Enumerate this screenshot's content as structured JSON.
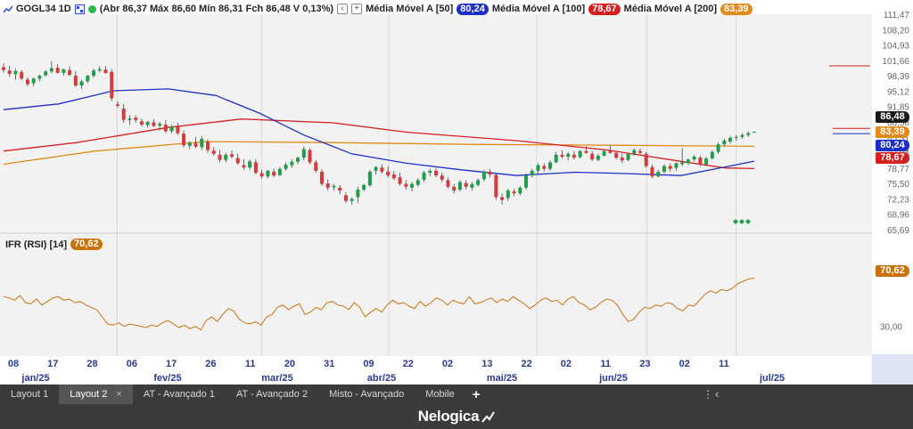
{
  "header": {
    "symbol": "GOGL34 1D",
    "ohlc": "(Abr 86,37 Máx 86,60 Mín 86,31 Fch 86,48 V 0,13%)",
    "ma50_label": "Média Móvel A [50]",
    "ma50_value": "80,24",
    "ma100_label": "Média Móvel A [100]",
    "ma100_value": "78,67",
    "ma200_label": "Média Móvel A [200]",
    "ma200_value": "83,39",
    "colors": {
      "ma50": "#1f2fc6",
      "ma100": "#d62020",
      "ma200": "#e08a1a",
      "up": "#1e9e4a",
      "down": "#d63a3a",
      "rsi": "#c8720e"
    }
  },
  "rsi": {
    "label": "IFR (RSI) [14]",
    "value": "70,62",
    "axis_label": "30,00"
  },
  "price_tags": {
    "last": "86,48",
    "ma200": "83,39",
    "ma50": "80,24",
    "ma100": "78,67",
    "rsi": "70,62"
  },
  "y_axis_ticks": [
    "111,47",
    "108,20",
    "104,93",
    "101,66",
    "98,39",
    "95,12",
    "91,85",
    "88,58",
    "85,31",
    "82,04",
    "78,77",
    "75,50",
    "72,23",
    "68,96",
    "65,69"
  ],
  "x_axis": {
    "days": [
      "08",
      "17",
      "28",
      "06",
      "17",
      "26",
      "11",
      "20",
      "31",
      "09",
      "22",
      "02",
      "13",
      "22",
      "02",
      "11",
      "23",
      "02",
      "11"
    ],
    "months": [
      "jan/25",
      "fev/25",
      "mar/25",
      "abr/25",
      "mai/25",
      "jun/25",
      "jul/25"
    ]
  },
  "tabs": [
    {
      "label": "Layout 1",
      "active": false
    },
    {
      "label": "Layout 2",
      "active": true
    },
    {
      "label": "AT - Avançado 1",
      "active": false
    },
    {
      "label": "AT - Avançado 2",
      "active": false
    },
    {
      "label": "Misto - Avançado",
      "active": false
    },
    {
      "label": "Mobile",
      "active": false
    }
  ],
  "tab_close": "×",
  "tab_add": "+",
  "tab_menu": "⋮",
  "tab_scroll": "‹",
  "brand": "Nelogica",
  "chart_data": {
    "type": "candlestick",
    "ylim": [
      65.69,
      111.47
    ],
    "candles": [
      [
        100.2,
        101.0,
        99.0,
        99.6
      ],
      [
        99.5,
        100.5,
        98.2,
        98.8
      ],
      [
        98.7,
        99.9,
        97.6,
        99.4
      ],
      [
        99.2,
        99.6,
        97.4,
        97.8
      ],
      [
        97.6,
        98.1,
        96.2,
        96.6
      ],
      [
        96.8,
        98.0,
        96.2,
        97.8
      ],
      [
        97.8,
        98.6,
        97.2,
        98.4
      ],
      [
        98.5,
        99.6,
        98.2,
        99.3
      ],
      [
        99.3,
        101.5,
        98.9,
        100.0
      ],
      [
        100.1,
        100.9,
        98.9,
        99.0
      ],
      [
        99.0,
        99.9,
        98.4,
        99.8
      ],
      [
        99.6,
        100.4,
        98.3,
        98.6
      ],
      [
        98.4,
        99.4,
        96.0,
        96.3
      ],
      [
        96.3,
        97.6,
        95.6,
        97.2
      ],
      [
        97.2,
        98.6,
        96.8,
        98.4
      ],
      [
        98.4,
        99.9,
        98.0,
        99.5
      ],
      [
        99.5,
        100.4,
        99.1,
        99.8
      ],
      [
        99.7,
        100.5,
        98.8,
        99.0
      ],
      [
        99.2,
        99.8,
        93.0,
        93.6
      ],
      [
        92.3,
        92.9,
        91.6,
        92.0
      ],
      [
        91.4,
        92.4,
        88.4,
        89.0
      ],
      [
        89.0,
        90.0,
        88.0,
        89.3
      ],
      [
        89.5,
        90.0,
        88.4,
        89.0
      ],
      [
        88.7,
        89.3,
        87.6,
        88.0
      ],
      [
        87.9,
        88.8,
        87.4,
        88.6
      ],
      [
        88.5,
        89.2,
        87.5,
        87.7
      ],
      [
        87.8,
        88.6,
        86.8,
        88.2
      ],
      [
        88.0,
        89.0,
        86.2,
        86.6
      ],
      [
        86.6,
        88.0,
        86.2,
        87.6
      ],
      [
        87.6,
        88.4,
        85.8,
        86.2
      ],
      [
        86.1,
        86.8,
        83.2,
        83.6
      ],
      [
        83.5,
        84.5,
        82.8,
        84.2
      ],
      [
        84.1,
        85.4,
        83.0,
        83.3
      ],
      [
        83.2,
        85.6,
        82.6,
        85.0
      ],
      [
        84.4,
        84.9,
        82.0,
        82.6
      ],
      [
        82.5,
        83.2,
        81.4,
        81.8
      ],
      [
        81.6,
        82.6,
        80.0,
        80.5
      ],
      [
        80.5,
        82.0,
        80.0,
        81.6
      ],
      [
        81.7,
        82.5,
        80.8,
        81.2
      ],
      [
        80.9,
        81.8,
        79.5,
        79.8
      ],
      [
        79.4,
        80.6,
        78.4,
        78.9
      ],
      [
        78.9,
        80.6,
        78.4,
        80.2
      ],
      [
        80.0,
        80.6,
        77.4,
        77.8
      ],
      [
        77.7,
        78.4,
        76.5,
        77.0
      ],
      [
        77.0,
        78.4,
        76.6,
        78.2
      ],
      [
        78.0,
        78.6,
        76.8,
        77.2
      ],
      [
        77.3,
        79.0,
        77.0,
        78.6
      ],
      [
        78.6,
        80.0,
        78.2,
        79.5
      ],
      [
        79.4,
        80.6,
        78.8,
        80.1
      ],
      [
        80.1,
        81.2,
        79.6,
        81.0
      ],
      [
        81.0,
        83.4,
        80.4,
        82.8
      ],
      [
        82.6,
        83.0,
        79.6,
        80.0
      ],
      [
        80.0,
        80.5,
        77.8,
        78.2
      ],
      [
        78.0,
        78.6,
        75.0,
        75.4
      ],
      [
        75.5,
        76.4,
        74.0,
        74.6
      ],
      [
        74.7,
        75.4,
        74.0,
        75.0
      ],
      [
        74.6,
        75.2,
        73.2,
        74.0
      ],
      [
        73.0,
        73.6,
        71.4,
        71.8
      ],
      [
        71.8,
        72.6,
        71.0,
        72.2
      ],
      [
        72.6,
        74.8,
        71.4,
        74.2
      ],
      [
        74.2,
        75.4,
        73.8,
        75.2
      ],
      [
        75.1,
        78.4,
        74.8,
        78.0
      ],
      [
        78.2,
        79.2,
        77.4,
        79.0
      ],
      [
        78.9,
        79.6,
        77.6,
        78.0
      ],
      [
        78.0,
        79.2,
        76.8,
        77.2
      ],
      [
        77.4,
        78.2,
        76.2,
        76.6
      ],
      [
        76.8,
        77.8,
        75.0,
        75.4
      ],
      [
        75.4,
        76.2,
        74.2,
        74.8
      ],
      [
        74.6,
        75.8,
        73.8,
        75.4
      ],
      [
        75.2,
        76.6,
        74.8,
        76.2
      ],
      [
        76.3,
        78.2,
        75.8,
        77.8
      ],
      [
        77.8,
        78.6,
        77.0,
        78.2
      ],
      [
        78.2,
        78.8,
        76.8,
        77.2
      ],
      [
        77.2,
        77.8,
        75.8,
        76.3
      ],
      [
        76.2,
        76.8,
        74.4,
        74.8
      ],
      [
        74.8,
        75.4,
        73.4,
        74.0
      ],
      [
        74.2,
        76.2,
        73.8,
        75.8
      ],
      [
        75.6,
        76.2,
        74.2,
        74.8
      ],
      [
        74.6,
        75.8,
        74.0,
        75.4
      ],
      [
        75.2,
        76.6,
        74.8,
        76.2
      ],
      [
        76.4,
        78.4,
        76.0,
        78.0
      ],
      [
        78.0,
        78.6,
        76.8,
        77.4
      ],
      [
        77.3,
        77.8,
        72.0,
        72.6
      ],
      [
        72.6,
        73.4,
        71.0,
        72.0
      ],
      [
        72.4,
        74.4,
        71.8,
        74.0
      ],
      [
        73.8,
        74.4,
        72.8,
        73.4
      ],
      [
        73.4,
        75.0,
        73.0,
        74.6
      ],
      [
        74.6,
        77.6,
        74.2,
        77.2
      ],
      [
        77.2,
        78.6,
        76.8,
        78.2
      ],
      [
        78.2,
        79.8,
        77.6,
        79.4
      ],
      [
        79.2,
        79.8,
        78.0,
        78.6
      ],
      [
        78.6,
        80.4,
        78.2,
        80.0
      ],
      [
        80.0,
        82.2,
        79.8,
        81.6
      ],
      [
        81.6,
        82.6,
        80.8,
        81.2
      ],
      [
        81.2,
        82.2,
        80.4,
        81.8
      ],
      [
        81.6,
        82.4,
        80.6,
        81.0
      ],
      [
        81.1,
        82.6,
        80.8,
        82.4
      ],
      [
        82.4,
        83.4,
        81.8,
        82.0
      ],
      [
        81.8,
        82.4,
        80.2,
        80.6
      ],
      [
        80.5,
        81.8,
        80.2,
        81.4
      ],
      [
        81.4,
        82.6,
        81.2,
        82.4
      ],
      [
        82.4,
        83.6,
        81.8,
        82.0
      ],
      [
        82.0,
        82.4,
        80.6,
        81.0
      ],
      [
        81.0,
        81.8,
        79.8,
        80.4
      ],
      [
        80.5,
        82.0,
        80.2,
        81.8
      ],
      [
        81.8,
        83.0,
        81.4,
        82.6
      ],
      [
        82.4,
        83.0,
        81.6,
        82.0
      ],
      [
        81.8,
        82.2,
        78.8,
        79.2
      ],
      [
        79.0,
        79.6,
        76.6,
        77.0
      ],
      [
        77.0,
        78.4,
        76.8,
        78.0
      ],
      [
        78.0,
        79.6,
        77.6,
        79.2
      ],
      [
        79.2,
        79.8,
        78.0,
        78.6
      ],
      [
        78.8,
        80.0,
        78.2,
        79.8
      ],
      [
        79.6,
        83.0,
        79.2,
        80.0
      ],
      [
        79.8,
        80.8,
        79.4,
        80.6
      ],
      [
        80.6,
        81.6,
        80.2,
        81.2
      ],
      [
        81.0,
        81.4,
        79.2,
        79.6
      ],
      [
        79.6,
        81.2,
        79.2,
        80.8
      ],
      [
        80.8,
        82.6,
        80.6,
        82.2
      ],
      [
        82.2,
        84.2,
        81.8,
        83.8
      ],
      [
        83.8,
        85.0,
        83.4,
        84.6
      ],
      [
        84.4,
        85.6,
        84.0,
        85.2
      ],
      [
        85.2,
        85.8,
        84.6,
        85.4
      ],
      [
        85.4,
        86.2,
        85.0,
        85.8
      ],
      [
        85.8,
        86.6,
        85.4,
        86.2
      ],
      [
        86.37,
        86.6,
        86.31,
        86.48
      ]
    ],
    "ma50": [
      [
        0,
        91.2
      ],
      [
        15,
        92.4
      ],
      [
        30,
        95.2
      ],
      [
        45,
        95.6
      ],
      [
        58,
        94.2
      ],
      [
        70,
        90.4
      ],
      [
        82,
        85.8
      ],
      [
        95,
        81.8
      ],
      [
        110,
        79.8
      ],
      [
        125,
        78.4
      ],
      [
        140,
        77.2
      ],
      [
        156,
        77.9
      ],
      [
        170,
        77.6
      ],
      [
        185,
        77.2
      ],
      [
        197,
        79.0
      ],
      [
        205,
        80.24
      ]
    ],
    "ma100": [
      [
        0,
        82.4
      ],
      [
        20,
        84.2
      ],
      [
        45,
        87.4
      ],
      [
        65,
        89.2
      ],
      [
        90,
        88.4
      ],
      [
        110,
        86.4
      ],
      [
        140,
        84.6
      ],
      [
        165,
        82.6
      ],
      [
        185,
        80.2
      ],
      [
        197,
        78.8
      ],
      [
        205,
        78.67
      ]
    ],
    "ma200": [
      [
        0,
        79.6
      ],
      [
        25,
        82.4
      ],
      [
        55,
        84.4
      ],
      [
        90,
        84.2
      ],
      [
        130,
        83.8
      ],
      [
        170,
        83.6
      ],
      [
        205,
        83.39
      ]
    ],
    "rsi_line": [
      55,
      54,
      52,
      56,
      50,
      49,
      53,
      48,
      51,
      54,
      55,
      52,
      53,
      50,
      51,
      48,
      46,
      44,
      38,
      32,
      31,
      33,
      30,
      32,
      31,
      30,
      29,
      31,
      30,
      33,
      35,
      32,
      29,
      31,
      28,
      30,
      27,
      35,
      38,
      34,
      40,
      45,
      43,
      36,
      33,
      32,
      34,
      31,
      38,
      40,
      46,
      48,
      44,
      47,
      49,
      40,
      42,
      46,
      44,
      50,
      51,
      48,
      47,
      44,
      50,
      46,
      38,
      42,
      45,
      42,
      48,
      52,
      49,
      50,
      47,
      45,
      51,
      47,
      50,
      54,
      52,
      48,
      52,
      50,
      49,
      55,
      49,
      50,
      52,
      54,
      50,
      53,
      51,
      55,
      52,
      49,
      45,
      48,
      52,
      54,
      51,
      52,
      48,
      53,
      55,
      50,
      48,
      44,
      46,
      50,
      53,
      52,
      48,
      40,
      34,
      36,
      42,
      46,
      45,
      48,
      47,
      50,
      49,
      45,
      43,
      48,
      47,
      52,
      57,
      60,
      58,
      61,
      60,
      62,
      66,
      68,
      70,
      70.62
    ]
  }
}
